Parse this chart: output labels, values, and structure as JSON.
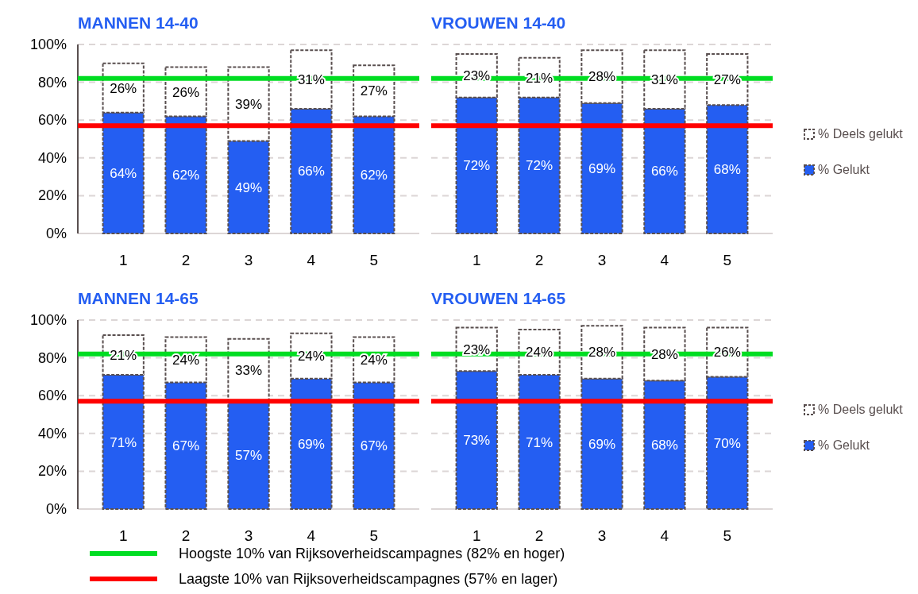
{
  "chart_data": [
    {
      "type": "bar",
      "title": "MANNEN 14-40",
      "stacked": true,
      "categories": [
        "1",
        "2",
        "3",
        "4",
        "5"
      ],
      "series": [
        {
          "color": "#245ef2",
          "values": [
            64,
            62,
            49,
            66,
            62
          ],
          "value_labels": [
            "64%",
            "62%",
            "49%",
            "66%",
            "62%"
          ]
        },
        {
          "color": "#ffffff",
          "values": [
            26,
            26,
            39,
            31,
            27
          ],
          "value_labels": [
            "26%",
            "26%",
            "39%",
            "31%",
            "27%"
          ]
        }
      ],
      "ylim": [
        0,
        100
      ],
      "yticks": [
        {
          "value": 0,
          "label": "0%"
        },
        {
          "value": 20,
          "label": "20%"
        },
        {
          "value": 40,
          "label": "40%"
        },
        {
          "value": 60,
          "label": "60%"
        },
        {
          "value": 80,
          "label": "80%"
        },
        {
          "value": 100,
          "label": "100%"
        }
      ],
      "grid": "y",
      "ref_lines": [
        {
          "axis": "y",
          "value": 82,
          "color": "#00dd22"
        },
        {
          "axis": "y",
          "value": 57,
          "color": "#ff0000"
        }
      ]
    },
    {
      "type": "bar",
      "title": "VROUWEN 14-40",
      "stacked": true,
      "categories": [
        "1",
        "2",
        "3",
        "4",
        "5"
      ],
      "series": [
        {
          "name": "% Gelukt",
          "color": "#245ef2",
          "values": [
            72,
            72,
            69,
            66,
            68
          ],
          "value_labels": [
            "72%",
            "72%",
            "69%",
            "66%",
            "68%"
          ]
        },
        {
          "name": "% Deels gelukt",
          "color": "#ffffff",
          "values": [
            23,
            21,
            28,
            31,
            27
          ],
          "value_labels": [
            "23%",
            "21%",
            "28%",
            "31%",
            "27%"
          ]
        }
      ],
      "ylim": [
        0,
        100
      ],
      "yticks": [
        0,
        20,
        40,
        60,
        80,
        100
      ],
      "tick_labels": "x",
      "grid": "y",
      "legend": "right",
      "ref_lines": [
        {
          "axis": "y",
          "value": 82,
          "color": "#00dd22"
        },
        {
          "axis": "y",
          "value": 57,
          "color": "#ff0000"
        }
      ]
    },
    {
      "type": "bar",
      "title": "MANNEN 14-65",
      "stacked": true,
      "categories": [
        "1",
        "2",
        "3",
        "4",
        "5"
      ],
      "series": [
        {
          "color": "#245ef2",
          "values": [
            71,
            67,
            57,
            69,
            67
          ],
          "value_labels": [
            "71%",
            "67%",
            "57%",
            "69%",
            "67%"
          ]
        },
        {
          "color": "#ffffff",
          "values": [
            21,
            24,
            33,
            24,
            24
          ],
          "value_labels": [
            "21%",
            "24%",
            "33%",
            "24%",
            "24%"
          ]
        }
      ],
      "ylim": [
        0,
        100
      ],
      "yticks": [
        {
          "value": 0,
          "label": "0%"
        },
        {
          "value": 20,
          "label": "20%"
        },
        {
          "value": 40,
          "label": "40%"
        },
        {
          "value": 60,
          "label": "60%"
        },
        {
          "value": 80,
          "label": "80%"
        },
        {
          "value": 100,
          "label": "100%"
        }
      ],
      "grid": "y",
      "legend": "bottom",
      "ref_lines": [
        {
          "axis": "y",
          "value": 82,
          "color": "#00dd22",
          "label": "Hoogste 10% van Rijksoverheidscampagnes (82% en hoger)"
        },
        {
          "axis": "y",
          "value": 57,
          "color": "#ff0000",
          "label": "Laagste 10% van Rijksoverheidscampagnes (57% en lager)"
        }
      ]
    },
    {
      "type": "bar",
      "title": "VROUWEN 14-65",
      "stacked": true,
      "categories": [
        "1",
        "2",
        "3",
        "4",
        "5"
      ],
      "series": [
        {
          "name": "% Gelukt",
          "color": "#245ef2",
          "values": [
            73,
            71,
            69,
            68,
            70
          ],
          "value_labels": [
            "73%",
            "71%",
            "69%",
            "68%",
            "70%"
          ]
        },
        {
          "name": "% Deels gelukt",
          "color": "#ffffff",
          "values": [
            23,
            24,
            28,
            28,
            26
          ],
          "value_labels": [
            "23%",
            "24%",
            "28%",
            "28%",
            "26%"
          ]
        }
      ],
      "ylim": [
        0,
        100
      ],
      "yticks": [
        0,
        20,
        40,
        60,
        80,
        100
      ],
      "tick_labels": "x",
      "grid": "y",
      "legend": "right",
      "ref_lines": [
        {
          "axis": "y",
          "value": 82,
          "color": "#00dd22"
        },
        {
          "axis": "y",
          "value": 57,
          "color": "#ff0000"
        }
      ]
    }
  ]
}
